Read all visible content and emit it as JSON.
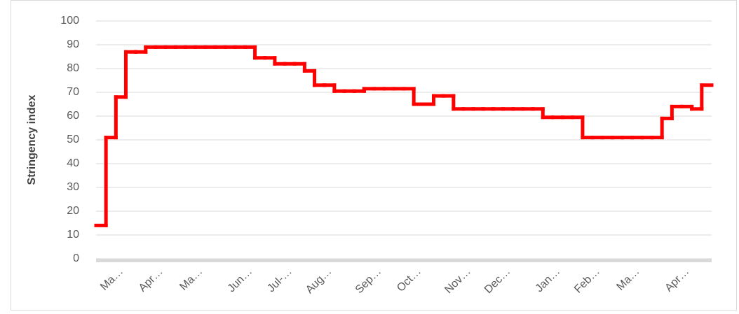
{
  "chart_data": {
    "type": "step",
    "y_label": "Stringency index",
    "categories": [
      null,
      null,
      "Ma…",
      null,
      null,
      null,
      "Apr…",
      null,
      null,
      null,
      "Ma…",
      null,
      null,
      null,
      null,
      "Jun…",
      null,
      null,
      null,
      "Jul-…",
      null,
      null,
      null,
      "Aug…",
      null,
      null,
      null,
      null,
      "Sep…",
      null,
      null,
      null,
      "Oct…",
      null,
      null,
      null,
      null,
      "Nov…",
      null,
      null,
      null,
      "Dec…",
      null,
      null,
      null,
      null,
      "Jan…",
      null,
      null,
      null,
      "Feb…",
      null,
      null,
      null,
      "Ma…",
      null,
      null,
      null,
      null,
      "Apr…",
      null,
      null
    ],
    "series": [
      {
        "name": "Stringency index",
        "color": "#ff0000",
        "values": [
          14,
          51,
          68,
          87,
          87,
          89,
          89,
          89,
          89,
          89,
          89,
          89,
          89,
          89,
          89,
          89,
          84.5,
          84.5,
          82,
          82,
          82,
          79,
          73,
          73,
          70.5,
          70.5,
          70.5,
          71.5,
          71.5,
          71.5,
          71.5,
          71.5,
          65,
          65,
          68.5,
          68.5,
          63,
          63,
          63,
          63,
          63,
          63,
          63,
          63,
          63,
          59.5,
          59.5,
          59.5,
          59.5,
          51,
          51,
          51,
          51,
          51,
          51,
          51,
          51,
          59,
          64,
          64,
          63,
          73
        ]
      }
    ],
    "ylim": [
      0,
      100
    ],
    "yticks": [
      0,
      10,
      20,
      30,
      40,
      50,
      60,
      70,
      80,
      90,
      100
    ],
    "grid": true
  }
}
